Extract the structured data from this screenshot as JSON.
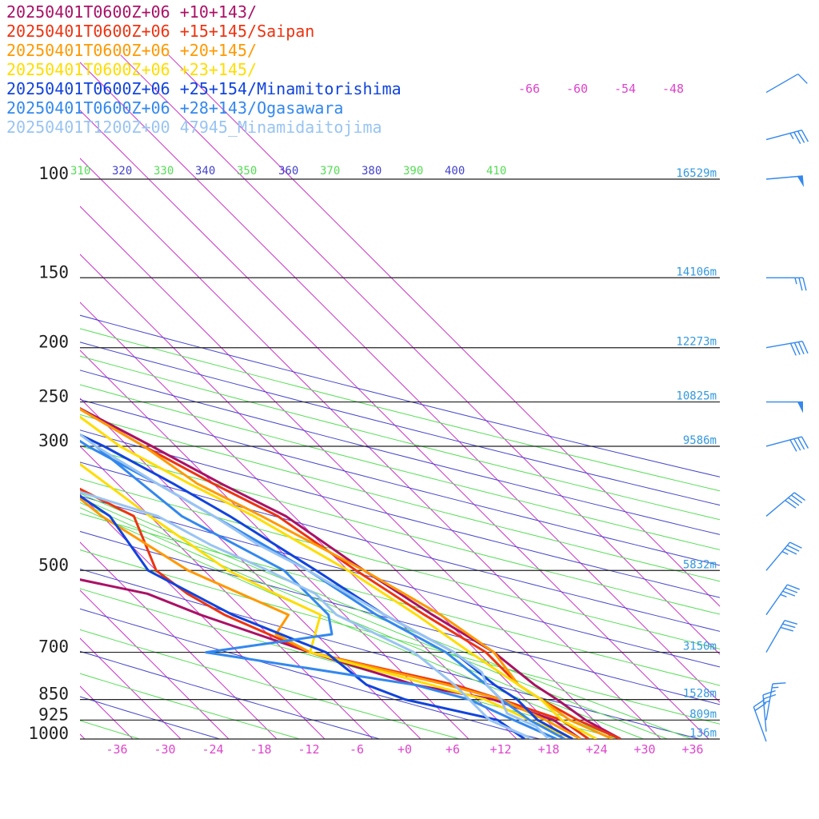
{
  "chart_data": {
    "type": "line",
    "title": "",
    "xlabel": "",
    "ylabel": "",
    "x_unit": "temperature (°C)",
    "y_unit": "pressure (hPa)",
    "xlim": [
      -42,
      42
    ],
    "ylim": [
      1000,
      100
    ],
    "pressure_levels": [
      100,
      150,
      200,
      250,
      300,
      500,
      700,
      850,
      925,
      1000
    ],
    "pressure_labels": [
      "100",
      "150",
      "200",
      "250",
      "300",
      "500",
      "700",
      "850",
      "925",
      "1000"
    ],
    "temperature_ticks": [
      "-36",
      "-30",
      "-24",
      "-18",
      "-12",
      "-6",
      "+0",
      "+6",
      "+12",
      "+18",
      "+24",
      "+30",
      "+36"
    ],
    "theta_labels": [
      "310",
      "320",
      "330",
      "340",
      "350",
      "360",
      "370",
      "380",
      "390",
      "400",
      "410"
    ],
    "mixing_labels": [
      "-66",
      "-60",
      "-54",
      "-48"
    ],
    "height_labels": [
      {
        "p": 100,
        "text": "16529m"
      },
      {
        "p": 150,
        "text": "14106m"
      },
      {
        "p": 200,
        "text": "12273m"
      },
      {
        "p": 250,
        "text": "10825m"
      },
      {
        "p": 300,
        "text": "9586m"
      },
      {
        "p": 500,
        "text": "5832m"
      },
      {
        "p": 700,
        "text": "3150m"
      },
      {
        "p": 850,
        "text": "1528m"
      },
      {
        "p": 925,
        "text": "809m"
      },
      {
        "p": 1000,
        "text": "136m"
      }
    ],
    "series": [
      {
        "name": "20250401T0600Z+06 +10+143/",
        "color": "#aa1166",
        "temperature": [
          [
            1000,
            27
          ],
          [
            925,
            25
          ],
          [
            850,
            24
          ],
          [
            800,
            23
          ],
          [
            700,
            22
          ],
          [
            600,
            19
          ],
          [
            500,
            16
          ],
          [
            400,
            13
          ],
          [
            350,
            9
          ],
          [
            300,
            5
          ],
          [
            250,
            0
          ],
          [
            200,
            -7
          ],
          [
            170,
            -11
          ],
          [
            150,
            -14
          ],
          [
            120,
            -19
          ],
          [
            100,
            -17
          ]
        ],
        "dewpoint": [
          [
            1000,
            22
          ],
          [
            925,
            21
          ],
          [
            850,
            16
          ],
          [
            800,
            8
          ],
          [
            700,
            -1
          ],
          [
            600,
            -10
          ],
          [
            550,
            -14
          ],
          [
            500,
            -25
          ],
          [
            400,
            -25
          ],
          [
            300,
            -26
          ]
        ]
      },
      {
        "name": "20250401T0600Z+06 +15+145/Saipan",
        "color": "#ee3311",
        "temperature": [
          [
            1000,
            27
          ],
          [
            925,
            24
          ],
          [
            850,
            22
          ],
          [
            800,
            21
          ],
          [
            700,
            21
          ],
          [
            600,
            18
          ],
          [
            500,
            15
          ],
          [
            400,
            12
          ],
          [
            350,
            8
          ],
          [
            300,
            4
          ],
          [
            250,
            0
          ],
          [
            200,
            -7
          ],
          [
            170,
            -10
          ],
          [
            150,
            -13
          ],
          [
            120,
            -18
          ],
          [
            100,
            -16
          ]
        ],
        "dewpoint": [
          [
            1000,
            23
          ],
          [
            925,
            22
          ],
          [
            850,
            17
          ],
          [
            800,
            13
          ],
          [
            700,
            -1
          ],
          [
            600,
            -7
          ],
          [
            550,
            -9
          ],
          [
            500,
            -10
          ],
          [
            400,
            -6
          ],
          [
            350,
            -10
          ],
          [
            300,
            -18
          ]
        ]
      },
      {
        "name": "20250401T0600Z+06 +20+145/",
        "color": "#ff9900",
        "temperature": [
          [
            1000,
            26
          ],
          [
            925,
            23
          ],
          [
            850,
            22
          ],
          [
            800,
            21
          ],
          [
            700,
            22
          ],
          [
            600,
            20
          ],
          [
            500,
            16
          ],
          [
            400,
            10
          ],
          [
            350,
            6
          ],
          [
            300,
            4
          ],
          [
            250,
            0
          ],
          [
            200,
            -6
          ],
          [
            170,
            -9
          ],
          [
            150,
            -12
          ],
          [
            120,
            -16
          ],
          [
            100,
            -14
          ]
        ],
        "dewpoint": [
          [
            1000,
            22
          ],
          [
            925,
            20
          ],
          [
            850,
            17
          ],
          [
            800,
            12
          ],
          [
            700,
            -1
          ],
          [
            650,
            -3
          ],
          [
            600,
            1
          ],
          [
            500,
            -6
          ],
          [
            400,
            -10
          ],
          [
            350,
            -11
          ],
          [
            300,
            -12
          ]
        ]
      },
      {
        "name": "20250401T0600Z+06 +23+145/",
        "color": "#ffdd00",
        "temperature": [
          [
            1000,
            24
          ],
          [
            925,
            22
          ],
          [
            850,
            22
          ],
          [
            800,
            21
          ],
          [
            700,
            19
          ],
          [
            600,
            17
          ],
          [
            500,
            14
          ],
          [
            400,
            9
          ],
          [
            350,
            5
          ],
          [
            300,
            1
          ],
          [
            250,
            -1
          ],
          [
            200,
            -5
          ],
          [
            170,
            -8
          ],
          [
            150,
            -11
          ],
          [
            120,
            -15
          ],
          [
            100,
            -13
          ]
        ],
        "dewpoint": [
          [
            1000,
            21
          ],
          [
            925,
            18
          ],
          [
            850,
            15
          ],
          [
            800,
            10
          ],
          [
            700,
            -1
          ],
          [
            600,
            5
          ],
          [
            550,
            2
          ],
          [
            500,
            -1
          ],
          [
            400,
            -4
          ],
          [
            300,
            -7
          ]
        ]
      },
      {
        "name": "20250401T0600Z+06 +25+154/Minamitorishima",
        "color": "#1144dd",
        "temperature": [
          [
            1000,
            21
          ],
          [
            925,
            19
          ],
          [
            850,
            19
          ],
          [
            800,
            18
          ],
          [
            700,
            17
          ],
          [
            600,
            13
          ],
          [
            500,
            10
          ],
          [
            400,
            6
          ],
          [
            350,
            3
          ],
          [
            300,
            -1
          ],
          [
            250,
            -7
          ],
          [
            220,
            -6
          ],
          [
            200,
            -3
          ],
          [
            170,
            -4
          ],
          [
            150,
            -6
          ],
          [
            120,
            -8
          ],
          [
            100,
            -7
          ]
        ],
        "dewpoint": [
          [
            1000,
            15
          ],
          [
            925,
            14
          ],
          [
            850,
            5
          ],
          [
            800,
            2
          ],
          [
            700,
            1
          ],
          [
            600,
            -6
          ],
          [
            500,
            -11
          ],
          [
            400,
            -9
          ],
          [
            350,
            -11
          ],
          [
            300,
            -13
          ]
        ]
      },
      {
        "name": "20250401T0600Z+06 +28+143/Ogasawara",
        "color": "#3388ee",
        "temperature": [
          [
            1000,
            20
          ],
          [
            925,
            18
          ],
          [
            850,
            17
          ],
          [
            800,
            17
          ],
          [
            700,
            16
          ],
          [
            600,
            12
          ],
          [
            500,
            9
          ],
          [
            400,
            4
          ],
          [
            350,
            1
          ],
          [
            300,
            -3
          ],
          [
            250,
            -6
          ],
          [
            220,
            -8
          ],
          [
            200,
            -4
          ],
          [
            170,
            -5
          ],
          [
            150,
            -7
          ],
          [
            120,
            -9
          ],
          [
            100,
            -7
          ]
        ],
        "dewpoint": [
          [
            1000,
            19
          ],
          [
            925,
            16
          ],
          [
            850,
            13
          ],
          [
            800,
            8
          ],
          [
            700,
            -14
          ],
          [
            650,
            4
          ],
          [
            600,
            6
          ],
          [
            500,
            6
          ],
          [
            400,
            0
          ],
          [
            300,
            -2
          ]
        ]
      },
      {
        "name": "20250401T1200Z+00 47945_Minamidaitojima",
        "color": "#99c4f2",
        "temperature": [
          [
            1000,
            18
          ],
          [
            950,
            18
          ],
          [
            925,
            17
          ],
          [
            900,
            16
          ],
          [
            850,
            17
          ],
          [
            800,
            17
          ],
          [
            760,
            18
          ],
          [
            700,
            17
          ],
          [
            600,
            13
          ],
          [
            500,
            9
          ],
          [
            450,
            6
          ],
          [
            400,
            4
          ],
          [
            350,
            1
          ],
          [
            300,
            -2
          ],
          [
            250,
            -4
          ],
          [
            200,
            -4
          ],
          [
            170,
            -6
          ],
          [
            150,
            -7
          ],
          [
            130,
            -9
          ],
          [
            120,
            -7
          ],
          [
            100,
            -6
          ]
        ],
        "dewpoint": [
          [
            1000,
            16
          ],
          [
            925,
            13
          ],
          [
            850,
            13
          ],
          [
            800,
            13
          ],
          [
            700,
            12
          ],
          [
            600,
            7
          ],
          [
            550,
            7
          ],
          [
            500,
            4
          ],
          [
            450,
            0
          ],
          [
            400,
            -3
          ],
          [
            350,
            -12
          ],
          [
            300,
            -34
          ],
          [
            250,
            -38
          ],
          [
            200,
            -36
          ],
          [
            150,
            -34
          ],
          [
            120,
            -31
          ],
          [
            100,
            -29
          ]
        ]
      }
    ],
    "wind_barbs": [
      {
        "p": 70,
        "speed": 10,
        "direction": 240
      },
      {
        "p": 85,
        "speed": 35,
        "direction": 255
      },
      {
        "p": 100,
        "speed": 50,
        "direction": 265
      },
      {
        "p": 150,
        "speed": 25,
        "direction": 270
      },
      {
        "p": 200,
        "speed": 40,
        "direction": 260
      },
      {
        "p": 250,
        "speed": 50,
        "direction": 270
      },
      {
        "p": 300,
        "speed": 40,
        "direction": 255
      },
      {
        "p": 400,
        "speed": 40,
        "direction": 230
      },
      {
        "p": 500,
        "speed": 35,
        "direction": 220
      },
      {
        "p": 600,
        "speed": 35,
        "direction": 215
      },
      {
        "p": 700,
        "speed": 30,
        "direction": 210
      },
      {
        "p": 925,
        "speed": 15,
        "direction": 190
      },
      {
        "p": 970,
        "speed": 25,
        "direction": 175
      },
      {
        "p": 1010,
        "speed": 20,
        "direction": 160
      }
    ]
  }
}
